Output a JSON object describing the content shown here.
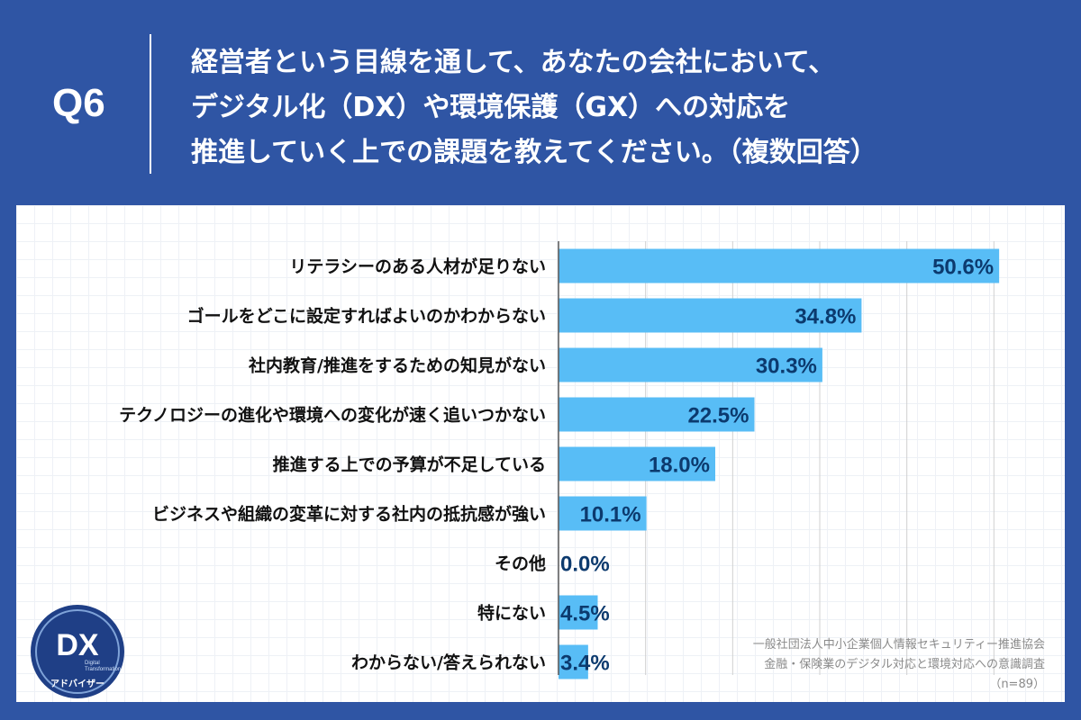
{
  "header": {
    "q_number": "Q6",
    "question_lines": [
      "経営者という目線を通して、あなたの会社において、",
      "デジタル化（DX）や環境保護（GX）への対応を",
      "推進していく上での課題を教えてください。（複数回答）"
    ]
  },
  "chart_data": {
    "type": "bar",
    "orientation": "horizontal",
    "categories": [
      "リテラシーのある人材が足りない",
      "ゴールをどこに設定すればよいのかわからない",
      "社内教育/推進をするための知見がない",
      "テクノロジーの進化や環境への変化が速く追いつかない",
      "推進する上での予算が不足している",
      "ビジネスや組織の変革に対する社内の抵抗感が強い",
      "その他",
      "特にない",
      "わからない/答えられない"
    ],
    "values": [
      50.6,
      34.8,
      30.3,
      22.5,
      18.0,
      10.1,
      0.0,
      4.5,
      3.4
    ],
    "value_labels": [
      "50.6%",
      "34.8%",
      "30.3%",
      "22.5%",
      "18.0%",
      "10.1%",
      "0.0%",
      "4.5%",
      "3.4%"
    ],
    "xlim": [
      0,
      60
    ],
    "grid": true,
    "bar_color": "#58bdf6"
  },
  "source": {
    "lines": [
      "一般社団法人中小企業個人情報セキュリティー推進協会",
      "金融・保険業のデジタル対応と環境対応への意識調査",
      "（n=89）"
    ]
  },
  "logo": {
    "main": "DX",
    "sub1": "Digital",
    "sub2": "Transformation",
    "bottom": "アドバイザー"
  }
}
